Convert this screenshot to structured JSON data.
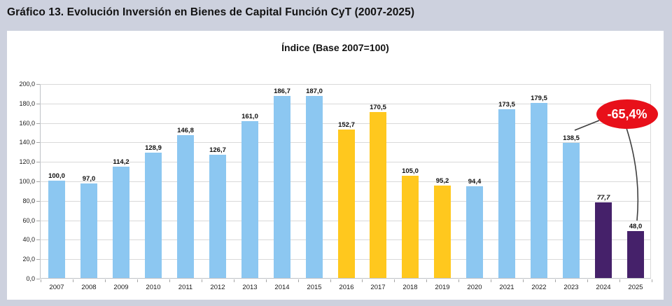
{
  "page_title": "Gráfico 13. Evolución Inversión en Bienes de Capital Función CyT (2007-2025)",
  "chart_data": {
    "type": "bar",
    "title": "Índice (Base 2007=100)",
    "xlabel": "",
    "ylabel": "",
    "categories": [
      "2007",
      "2008",
      "2009",
      "2010",
      "2011",
      "2012",
      "2013",
      "2014",
      "2015",
      "2016",
      "2017",
      "2018",
      "2019",
      "2020",
      "2021",
      "2022",
      "2023",
      "2024",
      "2025"
    ],
    "values": [
      100.0,
      97.0,
      114.2,
      128.9,
      146.8,
      126.7,
      161.0,
      186.7,
      187.0,
      152.7,
      170.5,
      105.0,
      95.2,
      94.4,
      173.5,
      179.5,
      138.5,
      77.7,
      48.0
    ],
    "value_labels": [
      "100,0",
      "97,0",
      "114,2",
      "128,9",
      "146,8",
      "126,7",
      "161,0",
      "186,7",
      "187,0",
      "152,7",
      "170,5",
      "105,0",
      "95,2",
      "94,4",
      "173,5",
      "179,5",
      "138,5",
      "77,7",
      "48,0"
    ],
    "bar_color_key": [
      "blue",
      "blue",
      "blue",
      "blue",
      "blue",
      "blue",
      "blue",
      "blue",
      "blue",
      "yellow",
      "yellow",
      "yellow",
      "yellow",
      "blue",
      "blue",
      "blue",
      "blue",
      "purple",
      "purple"
    ],
    "colors": {
      "blue": "#8CC7F1",
      "yellow": "#FFC81E",
      "purple": "#45216A"
    },
    "italic_label_indices": [
      17
    ],
    "ylim": [
      0,
      200
    ],
    "ytick_step": 20,
    "ytick_labels": [
      "0,0",
      "20,0",
      "40,0",
      "60,0",
      "80,0",
      "100,0",
      "120,0",
      "140,0",
      "160,0",
      "180,0",
      "200,0"
    ],
    "grid": true,
    "legend": "none",
    "annotation": {
      "text": "-65,4%",
      "color": "#E8101A",
      "text_color": "#ffffff",
      "targets": [
        "2023",
        "2025"
      ]
    }
  }
}
